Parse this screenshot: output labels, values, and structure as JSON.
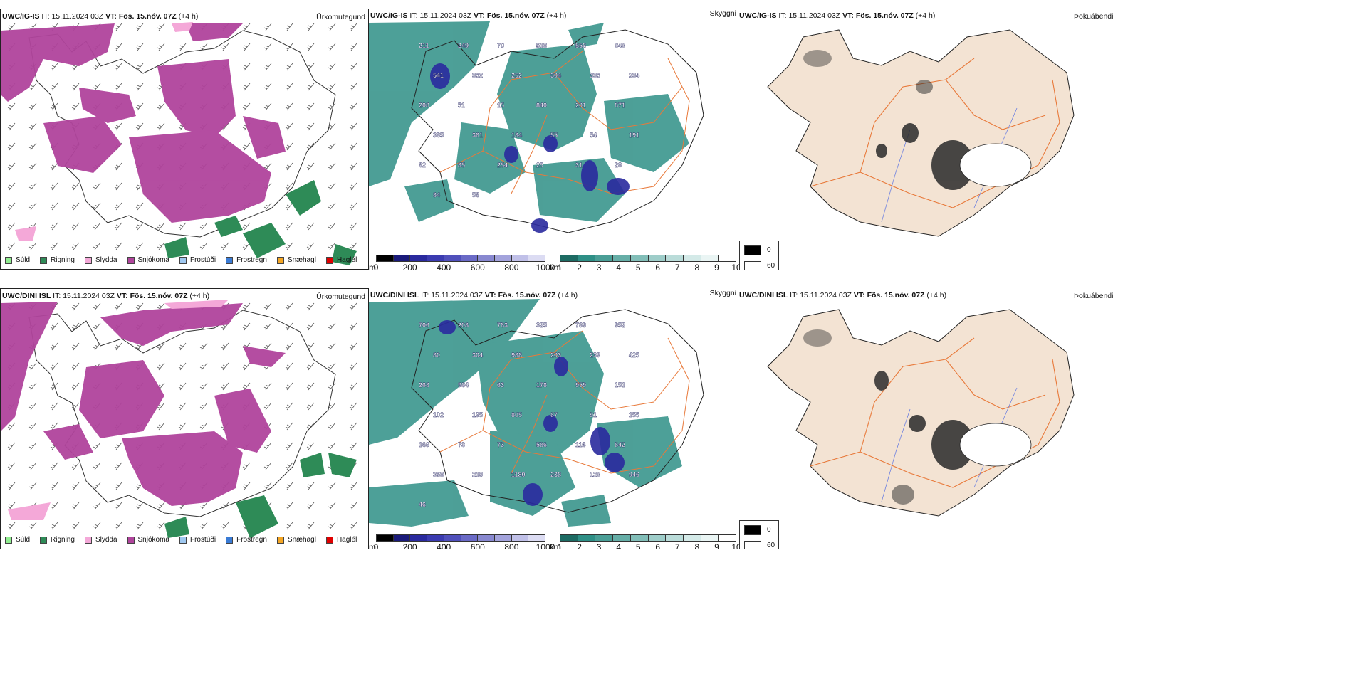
{
  "rows": [
    {
      "model": "UWC/IG-IS",
      "it_label": "IT:",
      "it_value": "15.11.2024 03Z",
      "vt_label": "VT:",
      "vt_value": "Fös. 15.nóv. 07Z",
      "lead": "(+4 h)",
      "precip_title": "Úrkomutegund",
      "vis_title": "Skyggni",
      "dew_title": "Þokuábendi",
      "spot_values": [
        "211",
        "249",
        "70",
        "518",
        "558",
        "343",
        "541",
        "352",
        "252",
        "304",
        "335",
        "234",
        "208",
        "51",
        "15",
        "840",
        "201",
        "871",
        "385",
        "381",
        "184",
        "55",
        "54",
        "191",
        "62",
        "85",
        "254",
        "25",
        "31",
        "28",
        "84",
        "56"
      ]
    },
    {
      "model": "UWC/DINI ISL",
      "it_label": "IT:",
      "it_value": "15.11.2024 03Z",
      "vt_label": "VT:",
      "vt_value": "Fös. 15.nóv. 07Z",
      "lead": "(+4 h)",
      "precip_title": "Úrkomutegund",
      "vis_title": "Skyggni",
      "dew_title": "Þokuábendi",
      "spot_values": [
        "706",
        "208",
        "783",
        "325",
        "789",
        "952",
        "80",
        "304",
        "988",
        "203",
        "239",
        "425",
        "268",
        "984",
        "63",
        "178",
        "959",
        "151",
        "102",
        "195",
        "805",
        "87",
        "91",
        "155",
        "169",
        "73",
        "73",
        "586",
        "116",
        "842",
        "358",
        "219",
        "1180",
        "238",
        "123",
        "946",
        "46"
      ]
    }
  ],
  "precip_legend": [
    {
      "label": "Súld",
      "color": "#90ee90"
    },
    {
      "label": "Rigning",
      "color": "#2e8b57"
    },
    {
      "label": "Slydda",
      "color": "#f4a8d8"
    },
    {
      "label": "Snjókoma",
      "color": "#b0449c"
    },
    {
      "label": "Frostúði",
      "color": "#9fc8f0"
    },
    {
      "label": "Frostregn",
      "color": "#3a7bd5"
    },
    {
      "label": "Snæhagl",
      "color": "#f5a623"
    },
    {
      "label": "Haglél",
      "color": "#e00000"
    }
  ],
  "ceiling_scale": {
    "unit": "m",
    "ticks": [
      "0",
      "200",
      "400",
      "600",
      "800",
      "1000"
    ]
  },
  "visibility_scale": {
    "unit": "km",
    "ticks": [
      "1",
      "2",
      "3",
      "4",
      "5",
      "6",
      "7",
      "8",
      "9",
      "10"
    ]
  },
  "cloud_key": {
    "top_label": "0",
    "bottom_label": "60"
  },
  "colors": {
    "snow": "#b0449c",
    "rain": "#2e8b57",
    "vis_teal": "#2e8f86",
    "land": "#f3e3d3",
    "road": "#e8793a",
    "coast": "#222222",
    "cloud_dark": "#2a2a2a"
  }
}
